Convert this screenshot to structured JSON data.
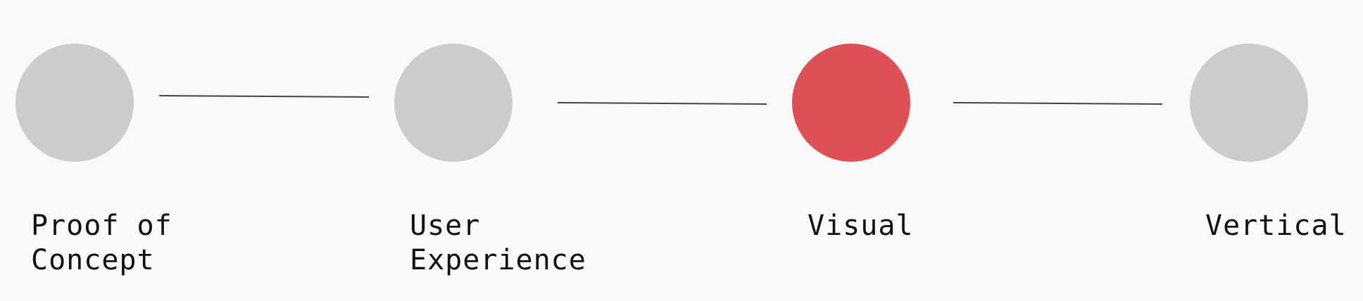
{
  "steps": [
    {
      "id": "proof-of-concept",
      "label_line1": "Proof of",
      "label_line2": "Concept",
      "state": "inactive"
    },
    {
      "id": "user-experience",
      "label_line1": "User",
      "label_line2": "Experience",
      "state": "inactive"
    },
    {
      "id": "visual",
      "label_line1": "Visual",
      "label_line2": "",
      "state": "active"
    },
    {
      "id": "vertical",
      "label_line1": "Vertical",
      "label_line2": "",
      "state": "inactive"
    }
  ],
  "colors": {
    "active": "#de5054",
    "inactive": "#cccccc",
    "connector": "#444444",
    "label": "#111111",
    "background": "#f9f9f9"
  }
}
